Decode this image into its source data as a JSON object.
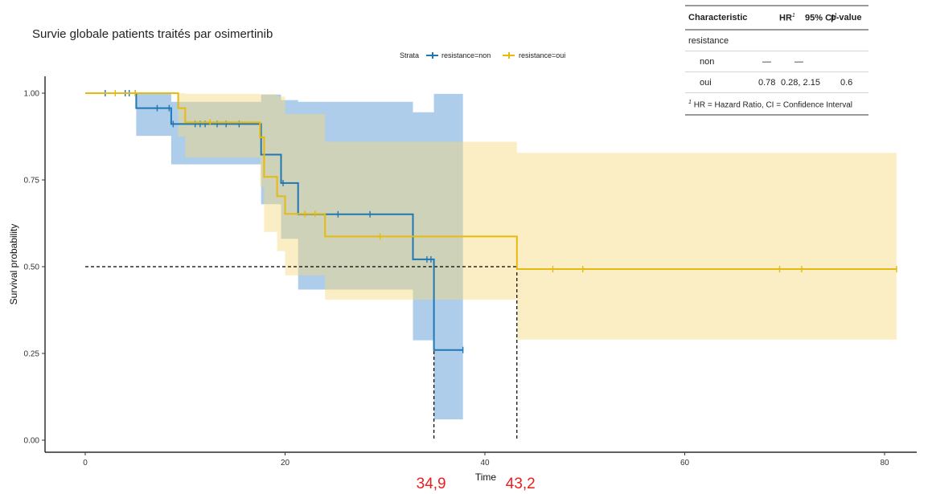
{
  "chart_data": {
    "type": "line",
    "subtype": "kaplan-meier",
    "title": "Survie globale patients traités par osimertinib",
    "xlabel": "Time",
    "ylabel": "Survival probability",
    "xlim": [
      0,
      83
    ],
    "ylim": [
      0,
      1.03
    ],
    "x_ticks": [
      0,
      20,
      40,
      60,
      80
    ],
    "x_tick_labels": [
      "0",
      "20",
      "40",
      "60",
      "80"
    ],
    "y_ticks": [
      0,
      0.25,
      0.5,
      0.75,
      1.0
    ],
    "y_tick_labels": [
      "0.00",
      "0.25",
      "0.50",
      "0.75",
      "1.00"
    ],
    "grid": false,
    "legend": {
      "title": "Strata",
      "placement": "top",
      "entries": [
        "resistance=non",
        "resistance=oui"
      ]
    },
    "series": [
      {
        "name": "resistance=non",
        "color": "#1f77b4",
        "ci_color": "#5b9bd5",
        "steps": [
          [
            0,
            1.0
          ],
          [
            5.1,
            0.957
          ],
          [
            8.6,
            0.911
          ],
          [
            17.6,
            0.823
          ],
          [
            19.6,
            0.741
          ],
          [
            21.3,
            0.651
          ],
          [
            32.8,
            0.521
          ],
          [
            34.9,
            0.26
          ],
          [
            37.8,
            0.26
          ]
        ],
        "ci_lower": [
          [
            0,
            1.0
          ],
          [
            5.1,
            0.877
          ],
          [
            8.6,
            0.795
          ],
          [
            17.6,
            0.68
          ],
          [
            19.6,
            0.58
          ],
          [
            21.3,
            0.434
          ],
          [
            32.8,
            0.288
          ],
          [
            34.9,
            0.06
          ],
          [
            37.8,
            0.06
          ]
        ],
        "ci_upper": [
          [
            0,
            1.0
          ],
          [
            5.1,
            1.0
          ],
          [
            8.6,
            0.975
          ],
          [
            17.6,
            0.996
          ],
          [
            19.6,
            0.98
          ],
          [
            21.3,
            0.975
          ],
          [
            32.8,
            0.945
          ],
          [
            34.9,
            0.998
          ],
          [
            37.8,
            0.998
          ]
        ],
        "censor_times": [
          2,
          4,
          4.4,
          5,
          7.2,
          8.4,
          8.8,
          11,
          11.5,
          12,
          13.2,
          14.1,
          15.4,
          19.8,
          25.3,
          28.5,
          34.2,
          34.6,
          37.8
        ],
        "median": 34.9
      },
      {
        "name": "resistance=oui",
        "color": "#e8b90e",
        "ci_color": "#f7d97c",
        "steps": [
          [
            0,
            1.0
          ],
          [
            9.3,
            0.957
          ],
          [
            10,
            0.916
          ],
          [
            17.5,
            0.873
          ],
          [
            17.9,
            0.759
          ],
          [
            19.2,
            0.703
          ],
          [
            20,
            0.652
          ],
          [
            24,
            0.587
          ],
          [
            43.2,
            0.493
          ],
          [
            81.2,
            0.493
          ]
        ],
        "ci_lower": [
          [
            0,
            1.0
          ],
          [
            9.3,
            0.875
          ],
          [
            10,
            0.815
          ],
          [
            17.5,
            0.73
          ],
          [
            17.9,
            0.6
          ],
          [
            19.2,
            0.545
          ],
          [
            20,
            0.475
          ],
          [
            24,
            0.405
          ],
          [
            43.2,
            0.29
          ],
          [
            81.2,
            0.29
          ]
        ],
        "ci_upper": [
          [
            0,
            1.0
          ],
          [
            9.3,
            1.0
          ],
          [
            10,
            0.998
          ],
          [
            17.5,
            0.997
          ],
          [
            17.9,
            0.997
          ],
          [
            19.2,
            0.99
          ],
          [
            20,
            0.94
          ],
          [
            24,
            0.86
          ],
          [
            43.2,
            0.828
          ],
          [
            81.2,
            0.828
          ]
        ],
        "censor_times": [
          3,
          5,
          12.5,
          22,
          23,
          29.5,
          46.8,
          49.8,
          69.5,
          71.7,
          81.2
        ],
        "median": 43.2
      }
    ],
    "median_line_y": 0.5,
    "annotations": [
      {
        "x": 34.9,
        "text": "34,9",
        "color": "#ee1c1c"
      },
      {
        "x": 43.2,
        "text": "43,2",
        "color": "#ee1c1c"
      }
    ]
  },
  "table": {
    "headers": [
      "Characteristic",
      "HR",
      "95% CI",
      "p-value"
    ],
    "header_footnote_mark": "1",
    "rows": [
      {
        "label": "resistance",
        "hr": "",
        "ci": "",
        "p": ""
      },
      {
        "label": "non",
        "hr": "—",
        "ci": "—",
        "p": ""
      },
      {
        "label": "oui",
        "hr": "0.78",
        "ci": "0.28, 2.15",
        "p": "0.6"
      }
    ],
    "footnote_mark": "1",
    "footnote": "HR = Hazard Ratio, CI = Confidence Interval"
  }
}
